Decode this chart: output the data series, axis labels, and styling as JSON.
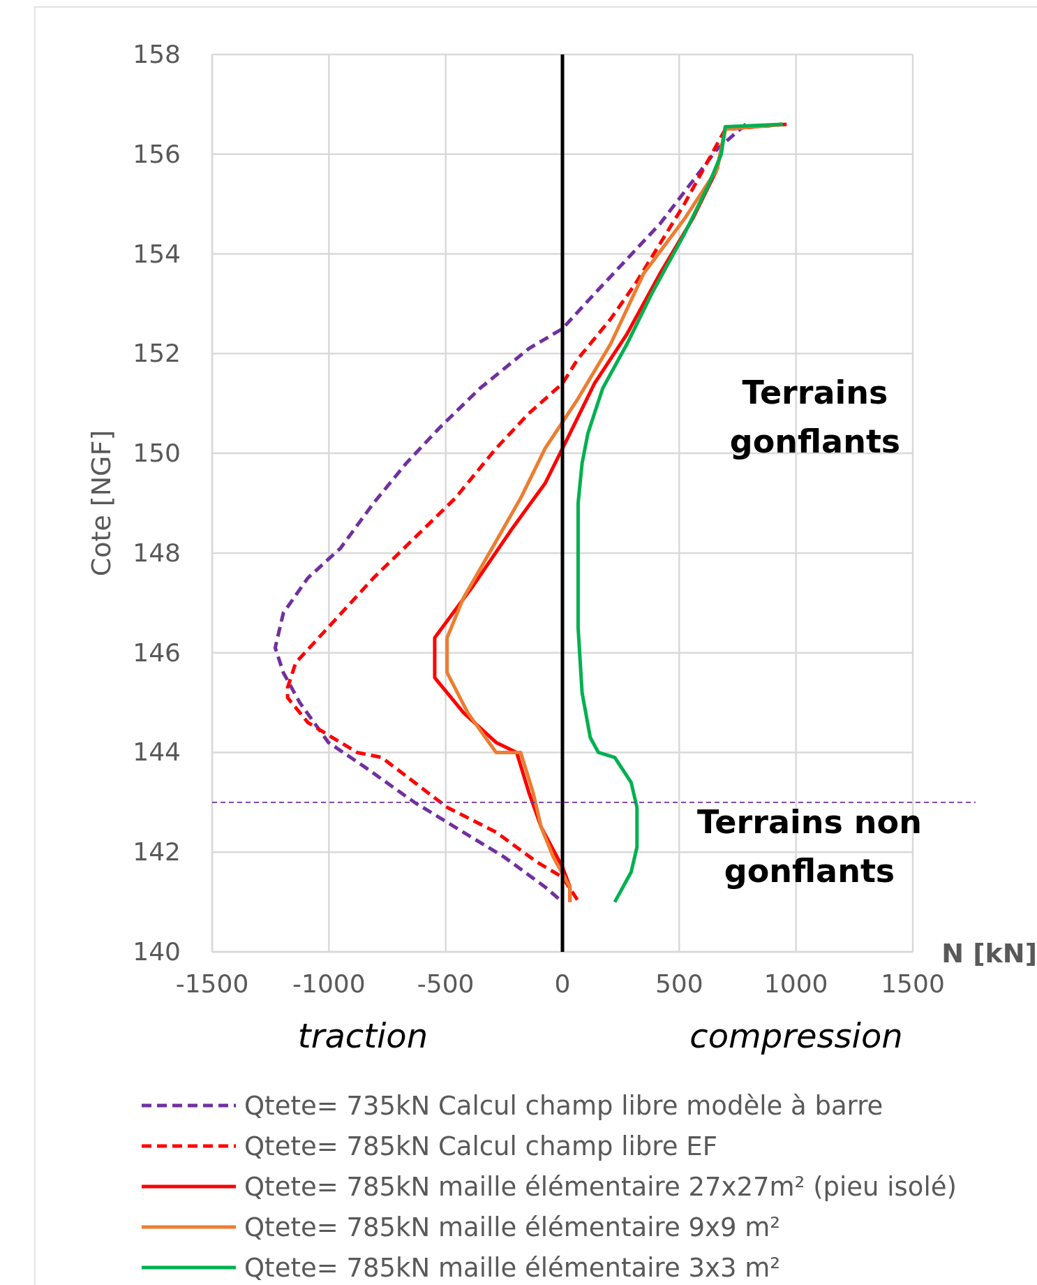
{
  "chart_data": {
    "type": "line",
    "xlabel": "N [kN]",
    "ylabel": "Cote [NGF]",
    "xlim": [
      -1500,
      1500
    ],
    "ylim": [
      140,
      158
    ],
    "xticks": [
      -1500,
      -1000,
      -500,
      0,
      500,
      1000,
      1500
    ],
    "yticks": [
      140,
      142,
      144,
      146,
      148,
      150,
      152,
      154,
      156,
      158
    ],
    "grid": true,
    "legend": "bottom",
    "annotations": [
      "Terrains gonflants",
      "Terrains non gonflants",
      "traction",
      "compression"
    ],
    "ref_lines": [
      {
        "axis": "x",
        "value": 0,
        "color": "#000000",
        "line_style": "solid"
      },
      {
        "axis": "y",
        "value": 143,
        "color": "#7030a0",
        "line_style": "dashed"
      }
    ],
    "series": [
      {
        "name": "Qtete= 735kN Calcul champ libre modèle à barre",
        "color": "#7030a0",
        "line_style": "dashed",
        "x": [
          785,
          662,
          417,
          277,
          137,
          0,
          -144,
          -354,
          -529,
          -669,
          -809,
          -950,
          -1090,
          -1195,
          -1230,
          -1195,
          -1125,
          -1002,
          -844,
          -634,
          -459,
          -249,
          -74,
          0
        ],
        "values": [
          156.6,
          156.1,
          154.6,
          153.9,
          153.2,
          152.5,
          152.1,
          151.3,
          150.5,
          149.8,
          149.0,
          148.1,
          147.5,
          146.8,
          146.1,
          145.6,
          145.0,
          144.2,
          143.7,
          143.0,
          142.5,
          141.9,
          141.3,
          141.0
        ]
      },
      {
        "name": "Qtete= 785kN Calcul champ libre EF",
        "color": "#ff0000",
        "line_style": "dashed",
        "x": [
          960,
          697,
          627,
          522,
          417,
          312,
          207,
          67,
          0,
          -144,
          -284,
          -459,
          -634,
          -809,
          -985,
          -1142,
          -1177,
          -1177,
          -1090,
          -985,
          -879,
          -774,
          -634,
          -494,
          -284,
          -109,
          0,
          70
        ],
        "values": [
          156.6,
          156.5,
          155.9,
          155.0,
          154.2,
          153.4,
          152.7,
          151.9,
          151.4,
          150.8,
          150.1,
          149.1,
          148.3,
          147.5,
          146.6,
          145.8,
          145.3,
          145.1,
          144.6,
          144.3,
          144.0,
          143.9,
          143.4,
          142.9,
          142.4,
          141.8,
          141.5,
          141.0
        ]
      },
      {
        "name": "Qtete= 785kN maille élémentaire 27x27m²  (pieu isolé)",
        "color": "#ff0000",
        "line_style": "solid",
        "x": [
          943,
          697,
          662,
          557,
          417,
          277,
          137,
          32,
          -74,
          -214,
          -389,
          -547,
          -547,
          -424,
          -284,
          -196,
          -144,
          -91,
          0,
          32,
          32
        ],
        "values": [
          156.6,
          156.5,
          155.7,
          154.7,
          153.6,
          152.4,
          151.4,
          150.4,
          149.4,
          148.5,
          147.3,
          146.3,
          145.5,
          144.8,
          144.2,
          144.0,
          143.2,
          142.5,
          141.7,
          141.3,
          141.0
        ]
      },
      {
        "name": "Qtete= 785kN maille élémentaire 9x9 m²",
        "color": "#ed7d31",
        "line_style": "solid",
        "x": [
          943,
          697,
          662,
          522,
          347,
          207,
          67,
          -74,
          -179,
          -301,
          -424,
          -494,
          -494,
          -406,
          -284,
          -179,
          -126,
          -91,
          -39,
          32,
          32
        ],
        "values": [
          156.6,
          156.5,
          155.7,
          154.7,
          153.6,
          152.2,
          151.1,
          150.1,
          149.1,
          148.1,
          147.1,
          146.3,
          145.6,
          144.8,
          144.0,
          144.0,
          143.2,
          142.5,
          141.9,
          141.3,
          141.0
        ]
      },
      {
        "name": "Qtete= 785kN maille élémentaire 3x3 m²",
        "color": "#00b050",
        "line_style": "solid",
        "x": [
          943,
          697,
          680,
          627,
          522,
          382,
          277,
          172,
          109,
          84,
          67,
          67,
          84,
          119,
          154,
          224,
          294,
          319,
          319,
          294,
          224
        ],
        "values": [
          156.6,
          156.55,
          156.0,
          155.4,
          154.4,
          153.2,
          152.2,
          151.3,
          150.4,
          149.8,
          149.0,
          146.5,
          145.2,
          144.3,
          144.0,
          143.9,
          143.4,
          142.9,
          142.1,
          141.6,
          141.0
        ]
      }
    ]
  }
}
